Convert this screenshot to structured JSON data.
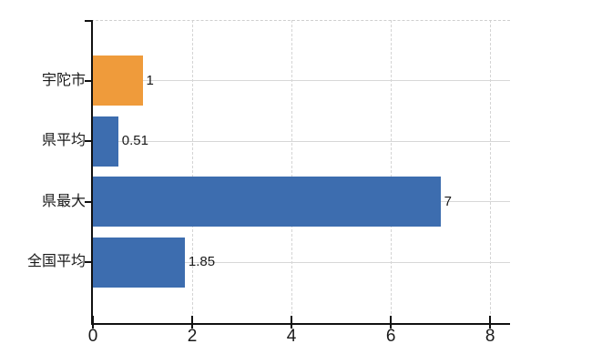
{
  "chart_data": {
    "type": "bar",
    "orientation": "horizontal",
    "title": "",
    "xlabel": "",
    "ylabel": "",
    "categories": [
      "宇陀市",
      "県平均",
      "県最大",
      "全国平均"
    ],
    "values": [
      1,
      0.51,
      7,
      1.85
    ],
    "value_labels": [
      "1",
      "0.51",
      "7",
      "1.85"
    ],
    "bar_colors": [
      "#ef9b3b",
      "#3d6daf",
      "#3d6daf",
      "#3d6daf"
    ],
    "xlim": [
      0,
      8.4
    ],
    "xticks": [
      0,
      2,
      4,
      6,
      8
    ],
    "xtick_labels": [
      "0",
      "2",
      "4",
      "6",
      "8"
    ],
    "grid": "on",
    "legend": "none",
    "colors": {
      "bar_blue": "#3d6daf",
      "bar_orange": "#ef9b3b",
      "axis": "#111111",
      "gridline_h": "#d7d7d7",
      "gridline_v": "#d4d4d4",
      "text": "#1a1a1a",
      "background": "#ffffff"
    }
  }
}
